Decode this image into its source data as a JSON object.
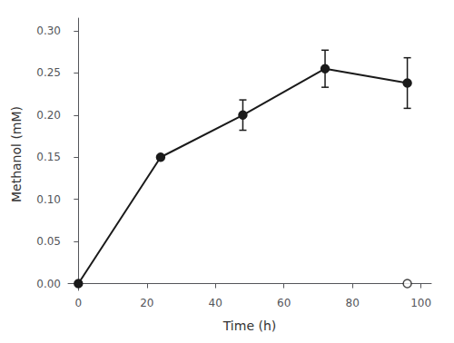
{
  "chart_data": {
    "type": "line",
    "xlabel": "Time (h)",
    "ylabel": "Methanol (mM)",
    "xlim": [
      -3,
      103
    ],
    "ylim": [
      -0.008,
      0.315
    ],
    "xticks": [
      0,
      20,
      40,
      60,
      80,
      100
    ],
    "yticks": [
      {
        "value": 0.0,
        "label": "0.00"
      },
      0.05,
      {
        "value": 0.1,
        "label": "0.10"
      },
      0.15,
      {
        "value": 0.2,
        "label": "0.20"
      },
      0.25,
      {
        "value": 0.3,
        "label": "0.30"
      }
    ],
    "grid": false,
    "series": [
      {
        "type": "line",
        "x": [
          0,
          24,
          48,
          72,
          96
        ],
        "values": [
          0.0,
          0.15,
          0.2,
          0.255,
          0.238
        ],
        "yerr": [
          0.0,
          0.0,
          0.018,
          0.022,
          0.03
        ],
        "color": "#1a1a1a",
        "marker": "circle",
        "line_style": "solid"
      },
      {
        "type": "scatter",
        "x": [
          96
        ],
        "values": [
          0.0
        ],
        "color": "#1a1a1a",
        "marker": "open_circle"
      }
    ]
  }
}
